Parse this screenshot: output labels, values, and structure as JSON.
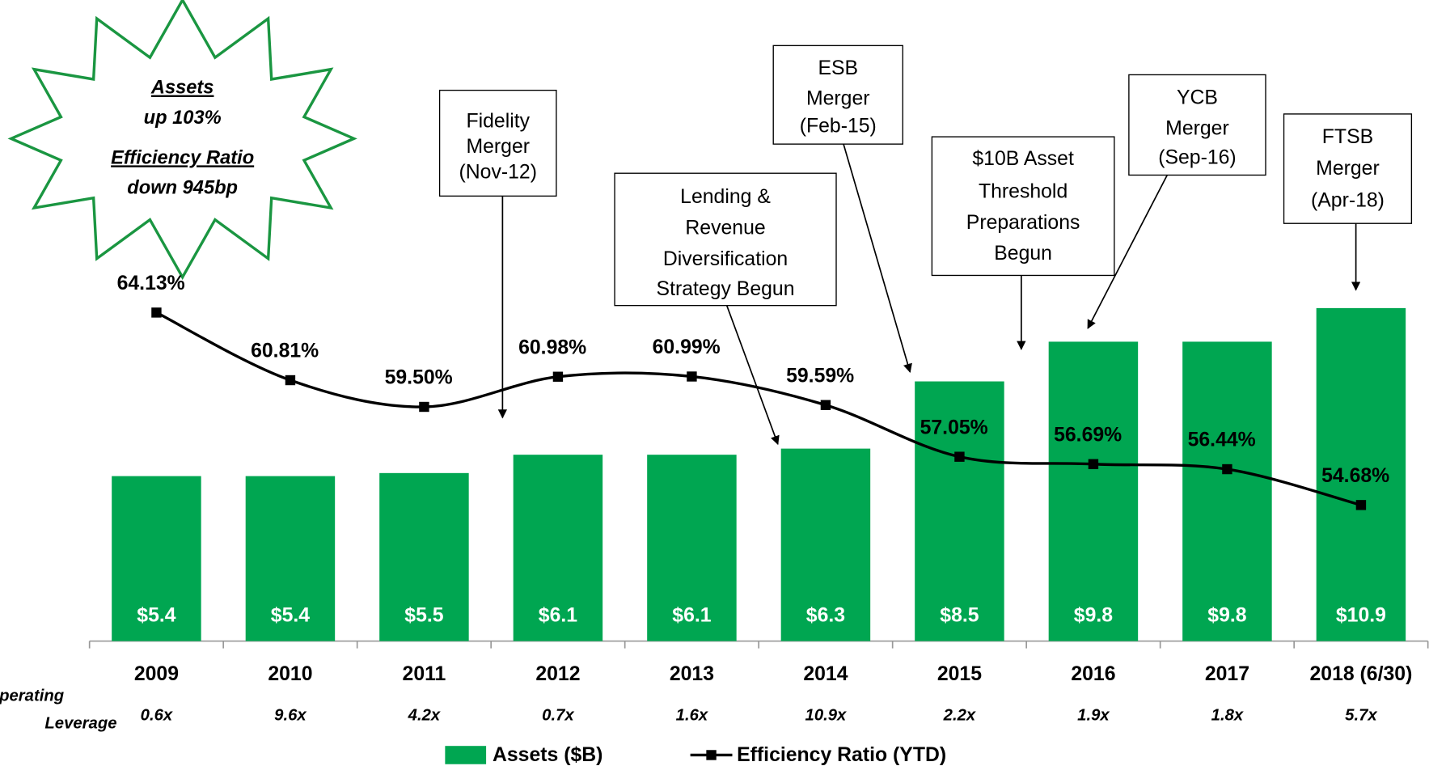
{
  "chart_data": {
    "type": "bar_line",
    "categories": [
      "2009",
      "2010",
      "2011",
      "2012",
      "2013",
      "2014",
      "2015",
      "2016",
      "2017",
      "2018 (6/30)"
    ],
    "series": [
      {
        "name": "Assets ($B)",
        "type": "bar",
        "color": "#00a651",
        "values": [
          5.4,
          5.4,
          5.5,
          6.1,
          6.1,
          6.3,
          8.5,
          9.8,
          9.8,
          10.9
        ],
        "value_labels": [
          "$5.4",
          "$5.4",
          "$5.5",
          "$6.1",
          "$6.1",
          "$6.3",
          "$8.5",
          "$9.8",
          "$9.8",
          "$10.9"
        ]
      },
      {
        "name": "Efficiency Ratio (YTD)",
        "type": "line",
        "color": "#000000",
        "axis": "y2",
        "values": [
          64.13,
          60.81,
          59.5,
          60.98,
          60.99,
          59.59,
          57.05,
          56.69,
          56.44,
          54.68
        ],
        "value_labels": [
          "64.13%",
          "60.81%",
          "59.50%",
          "60.98%",
          "60.99%",
          "59.59%",
          "57.05%",
          "56.69%",
          "56.44%",
          "54.68%"
        ]
      }
    ],
    "ylim": [
      0,
      20
    ],
    "y2lim": [
      48,
      78
    ],
    "operating_leverage": {
      "label": [
        "Operating",
        "Leverage"
      ],
      "values": [
        "0.6x",
        "9.6x",
        "4.2x",
        "0.7x",
        "1.6x",
        "10.9x",
        "2.2x",
        "1.9x",
        "1.8x",
        "5.7x"
      ]
    },
    "annotations": [
      {
        "lines": [
          "Fidelity",
          "Merger",
          "(Nov-12)"
        ]
      },
      {
        "lines": [
          "Lending &",
          "Revenue",
          "Diversification",
          "Strategy Begun"
        ]
      },
      {
        "lines": [
          "ESB",
          "Merger",
          "(Feb-15)"
        ]
      },
      {
        "lines": [
          "$10B Asset",
          "Threshold",
          "Preparations",
          "Begun"
        ]
      },
      {
        "lines": [
          "YCB",
          "Merger",
          "(Sep-16)"
        ]
      },
      {
        "lines": [
          "FTSB",
          "Merger",
          "(Apr-18)"
        ]
      }
    ],
    "starburst": {
      "color": "#1a9641",
      "lines": [
        {
          "text": "Assets",
          "underline": true
        },
        {
          "text": "up 103%",
          "underline": false
        },
        {
          "text": "Efficiency Ratio",
          "underline": true
        },
        {
          "text": "down 945bp",
          "underline": false
        }
      ]
    },
    "legend": "bottom"
  }
}
